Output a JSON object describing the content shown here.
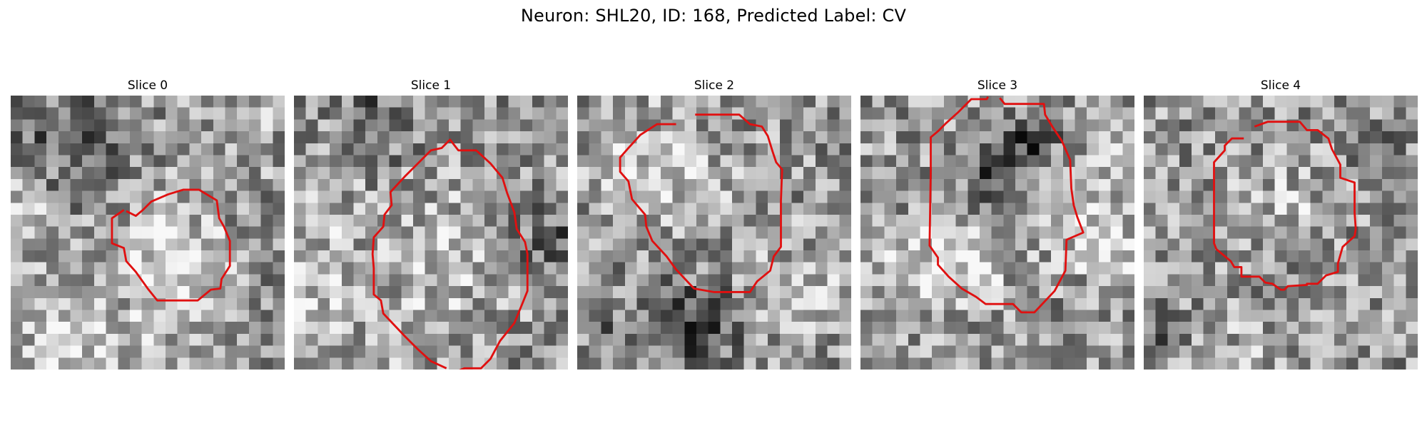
{
  "figure": {
    "title": "Neuron: SHL20, ID: 168, Predicted Label: CV",
    "outline_color": "#e01010",
    "colormap": "grayscale",
    "grid_size": 23
  },
  "panels": [
    {
      "title": "Slice 0"
    },
    {
      "title": "Slice 1"
    },
    {
      "title": "Slice 2"
    },
    {
      "title": "Slice 3"
    },
    {
      "title": "Slice 4"
    }
  ]
}
